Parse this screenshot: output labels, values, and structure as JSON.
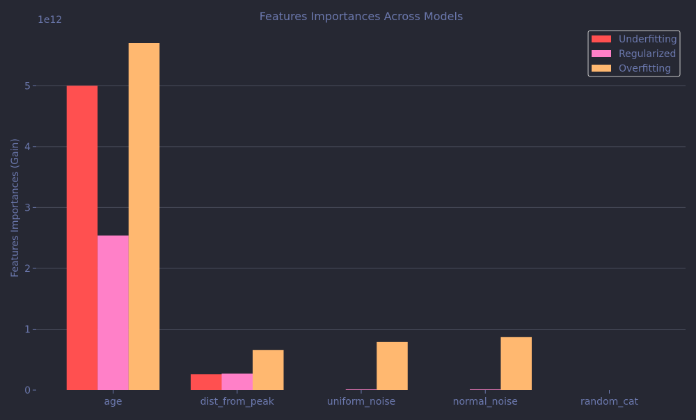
{
  "chart_data": {
    "type": "bar",
    "title": "Features Importances Across Models",
    "xlabel": "",
    "ylabel": "Features Importances (Gain)",
    "y_offset_label": "1e12",
    "categories": [
      "age",
      "dist_from_peak",
      "uniform_noise",
      "normal_noise",
      "random_cat"
    ],
    "series": [
      {
        "name": "Underfitting",
        "values": [
          5.0,
          0.26,
          0.0,
          0.0,
          0.0
        ]
      },
      {
        "name": "Regularized",
        "values": [
          2.54,
          0.27,
          0.012,
          0.012,
          0.0
        ]
      },
      {
        "name": "Overfitting",
        "values": [
          5.7,
          0.66,
          0.79,
          0.87,
          0.0
        ]
      }
    ],
    "ylim": [
      0,
      5.7
    ],
    "yticks": [
      0,
      1,
      2,
      3,
      4,
      5
    ],
    "ytick_labels": [
      "0",
      "1",
      "2",
      "3",
      "4",
      "5"
    ],
    "grid": true,
    "legend_position": "top-right",
    "colors": {
      "background": "#262833",
      "grid": "#4a4d5c",
      "text": "#6b78ad",
      "series": [
        "#ff5050",
        "#ff80c8",
        "#ffb870"
      ]
    }
  }
}
